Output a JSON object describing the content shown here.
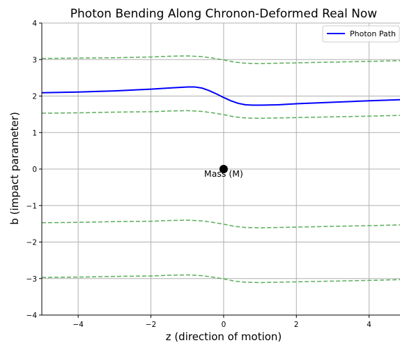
{
  "chart_data": {
    "type": "line",
    "title": "Photon Bending Along Chronon-Deformed Real Now",
    "xlabel": "z (direction of motion)",
    "ylabel": "b (impact parameter)",
    "xlim": [
      -5,
      4.85
    ],
    "ylim": [
      -4,
      4
    ],
    "xticks": [
      -4,
      -2,
      0,
      2,
      4
    ],
    "yticks": [
      -4,
      -3,
      -2,
      -1,
      0,
      1,
      2,
      3,
      4
    ],
    "xtick_labels": [
      "−4",
      "−2",
      "0",
      "2",
      "4"
    ],
    "ytick_labels": [
      "−4",
      "−3",
      "−2",
      "−1",
      "0",
      "1",
      "2",
      "3",
      "4"
    ],
    "grid": true,
    "legend": {
      "position": "top-right",
      "entries": [
        {
          "label": "Photon Path",
          "color": "#0000ff"
        }
      ]
    },
    "series": [
      {
        "name": "Photon Path",
        "style": "solid",
        "color": "#0000ff",
        "x": [
          -5,
          -4,
          -3,
          -2,
          -1.5,
          -1,
          -0.8,
          -0.6,
          -0.4,
          -0.2,
          0,
          0.2,
          0.4,
          0.6,
          0.8,
          1,
          1.5,
          2,
          3,
          4,
          4.85
        ],
        "y": [
          2.09,
          2.11,
          2.14,
          2.19,
          2.22,
          2.25,
          2.25,
          2.22,
          2.15,
          2.06,
          1.96,
          1.87,
          1.8,
          1.76,
          1.75,
          1.75,
          1.76,
          1.79,
          1.83,
          1.87,
          1.9
        ]
      },
      {
        "style": "dashed",
        "color": "#5aae5a",
        "x": [
          -5,
          -4,
          -3,
          -2,
          -1.5,
          -1,
          -0.6,
          -0.3,
          0,
          0.3,
          0.6,
          1,
          1.5,
          2,
          3,
          4,
          4.85
        ],
        "y": [
          3.03,
          3.04,
          3.05,
          3.07,
          3.09,
          3.1,
          3.08,
          3.04,
          2.99,
          2.93,
          2.9,
          2.89,
          2.9,
          2.91,
          2.93,
          2.95,
          2.97
        ]
      },
      {
        "style": "dashed",
        "color": "#5aae5a",
        "x": [
          -5,
          -4,
          -3,
          -2,
          -1.5,
          -1,
          -0.6,
          -0.3,
          0,
          0.3,
          0.6,
          1,
          1.5,
          2,
          3,
          4,
          4.85
        ],
        "y": [
          1.53,
          1.54,
          1.56,
          1.57,
          1.59,
          1.6,
          1.58,
          1.54,
          1.49,
          1.43,
          1.4,
          1.39,
          1.4,
          1.41,
          1.43,
          1.45,
          1.47
        ]
      },
      {
        "style": "dashed",
        "color": "#5aae5a",
        "x": [
          -5,
          -4,
          -3,
          -2,
          -1.5,
          -1,
          -0.6,
          -0.3,
          0,
          0.3,
          0.6,
          1,
          1.5,
          2,
          3,
          4,
          4.85
        ],
        "y": [
          -1.47,
          -1.46,
          -1.44,
          -1.43,
          -1.41,
          -1.4,
          -1.42,
          -1.46,
          -1.51,
          -1.57,
          -1.6,
          -1.61,
          -1.6,
          -1.59,
          -1.57,
          -1.55,
          -1.53
        ]
      },
      {
        "style": "dashed",
        "color": "#5aae5a",
        "x": [
          -5,
          -4,
          -3,
          -2,
          -1.5,
          -1,
          -0.6,
          -0.3,
          0,
          0.3,
          0.6,
          1,
          1.5,
          2,
          3,
          4,
          4.85
        ],
        "y": [
          -2.97,
          -2.96,
          -2.94,
          -2.93,
          -2.91,
          -2.9,
          -2.92,
          -2.96,
          -3.01,
          -3.07,
          -3.1,
          -3.11,
          -3.1,
          -3.09,
          -3.07,
          -3.05,
          -3.03
        ]
      }
    ],
    "points": [
      {
        "label": "Mass (M)",
        "x": 0,
        "y": 0,
        "color": "#000000"
      }
    ],
    "colors": {
      "grid": "#b0b0b0",
      "axis": "#000000"
    }
  }
}
